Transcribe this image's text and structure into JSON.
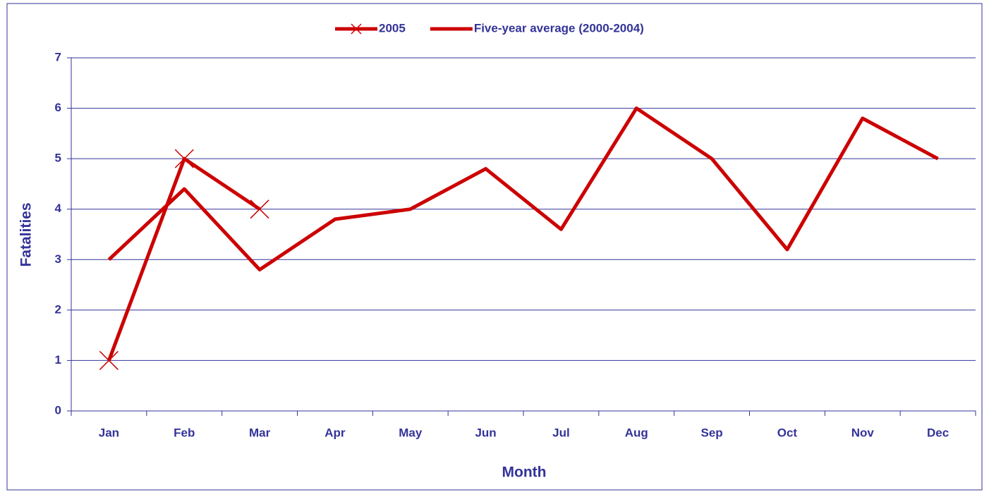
{
  "chart_data": {
    "type": "line",
    "x_label": "Month",
    "y_label": "Fatalities",
    "categories": [
      "Jan",
      "Feb",
      "Mar",
      "Apr",
      "May",
      "Jun",
      "Jul",
      "Aug",
      "Sep",
      "Oct",
      "Nov",
      "Dec"
    ],
    "series": [
      {
        "name": "2005",
        "color": "#cc0000",
        "marker": "x",
        "values": [
          1,
          5,
          4,
          null,
          null,
          null,
          null,
          null,
          null,
          null,
          null,
          null
        ]
      },
      {
        "name": "Five-year average (2000-2004)",
        "color": "#cc0000",
        "values": [
          3,
          4.4,
          2.8,
          3.8,
          4,
          4.8,
          3.6,
          6,
          5,
          3.2,
          5.8,
          5
        ]
      }
    ],
    "ylim": [
      0,
      7
    ],
    "yticks": [
      0,
      1,
      2,
      3,
      4,
      5,
      6,
      7
    ],
    "grid": true,
    "legend": "top"
  }
}
